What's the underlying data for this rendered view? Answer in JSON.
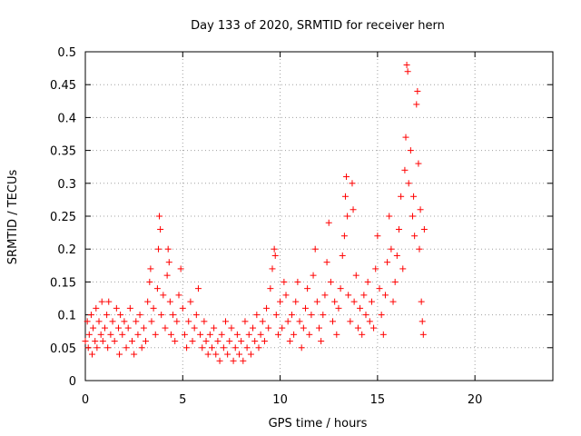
{
  "chart_data": {
    "type": "scatter",
    "title": "Day 133 of 2020, SRMTID for receiver hern",
    "xlabel": "GPS time / hours",
    "ylabel": "SRMTID / TECUs",
    "xlim": [
      0,
      24
    ],
    "ylim": [
      0,
      0.5
    ],
    "xticks": [
      0,
      5,
      10,
      15,
      20
    ],
    "yticks": [
      0,
      0.05,
      0.1,
      0.15,
      0.2,
      0.25,
      0.3,
      0.35,
      0.4,
      0.45,
      0.5
    ],
    "grid": true,
    "marker": "+",
    "color": "#ff0000",
    "series": [
      {
        "name": "SRMTID",
        "points": [
          [
            0.0,
            0.06
          ],
          [
            0.1,
            0.09
          ],
          [
            0.15,
            0.05
          ],
          [
            0.2,
            0.07
          ],
          [
            0.3,
            0.1
          ],
          [
            0.35,
            0.04
          ],
          [
            0.4,
            0.08
          ],
          [
            0.5,
            0.06
          ],
          [
            0.55,
            0.11
          ],
          [
            0.6,
            0.05
          ],
          [
            0.7,
            0.09
          ],
          [
            0.8,
            0.07
          ],
          [
            0.85,
            0.12
          ],
          [
            0.9,
            0.06
          ],
          [
            1.0,
            0.08
          ],
          [
            1.1,
            0.1
          ],
          [
            1.15,
            0.05
          ],
          [
            1.2,
            0.12
          ],
          [
            1.3,
            0.07
          ],
          [
            1.4,
            0.09
          ],
          [
            1.5,
            0.06
          ],
          [
            1.6,
            0.11
          ],
          [
            1.7,
            0.08
          ],
          [
            1.75,
            0.04
          ],
          [
            1.8,
            0.1
          ],
          [
            1.9,
            0.07
          ],
          [
            2.0,
            0.09
          ],
          [
            2.1,
            0.05
          ],
          [
            2.2,
            0.08
          ],
          [
            2.3,
            0.11
          ],
          [
            2.4,
            0.06
          ],
          [
            2.5,
            0.04
          ],
          [
            2.6,
            0.09
          ],
          [
            2.7,
            0.07
          ],
          [
            2.8,
            0.1
          ],
          [
            2.9,
            0.05
          ],
          [
            3.0,
            0.08
          ],
          [
            3.1,
            0.06
          ],
          [
            3.2,
            0.12
          ],
          [
            3.3,
            0.15
          ],
          [
            3.35,
            0.17
          ],
          [
            3.4,
            0.09
          ],
          [
            3.5,
            0.11
          ],
          [
            3.6,
            0.07
          ],
          [
            3.7,
            0.14
          ],
          [
            3.75,
            0.2
          ],
          [
            3.8,
            0.25
          ],
          [
            3.85,
            0.23
          ],
          [
            3.9,
            0.1
          ],
          [
            4.0,
            0.13
          ],
          [
            4.1,
            0.08
          ],
          [
            4.2,
            0.16
          ],
          [
            4.25,
            0.2
          ],
          [
            4.3,
            0.18
          ],
          [
            4.35,
            0.12
          ],
          [
            4.4,
            0.07
          ],
          [
            4.5,
            0.1
          ],
          [
            4.6,
            0.06
          ],
          [
            4.7,
            0.09
          ],
          [
            4.8,
            0.13
          ],
          [
            4.9,
            0.17
          ],
          [
            5.0,
            0.11
          ],
          [
            5.1,
            0.07
          ],
          [
            5.2,
            0.05
          ],
          [
            5.3,
            0.09
          ],
          [
            5.4,
            0.12
          ],
          [
            5.5,
            0.06
          ],
          [
            5.6,
            0.08
          ],
          [
            5.7,
            0.1
          ],
          [
            5.8,
            0.14
          ],
          [
            5.9,
            0.07
          ],
          [
            6.0,
            0.05
          ],
          [
            6.1,
            0.09
          ],
          [
            6.2,
            0.06
          ],
          [
            6.3,
            0.04
          ],
          [
            6.4,
            0.07
          ],
          [
            6.5,
            0.05
          ],
          [
            6.6,
            0.08
          ],
          [
            6.7,
            0.04
          ],
          [
            6.8,
            0.06
          ],
          [
            6.9,
            0.03
          ],
          [
            7.0,
            0.07
          ],
          [
            7.1,
            0.05
          ],
          [
            7.2,
            0.09
          ],
          [
            7.3,
            0.04
          ],
          [
            7.4,
            0.06
          ],
          [
            7.5,
            0.08
          ],
          [
            7.6,
            0.03
          ],
          [
            7.7,
            0.05
          ],
          [
            7.8,
            0.07
          ],
          [
            7.9,
            0.04
          ],
          [
            8.0,
            0.06
          ],
          [
            8.1,
            0.03
          ],
          [
            8.2,
            0.09
          ],
          [
            8.3,
            0.05
          ],
          [
            8.4,
            0.07
          ],
          [
            8.5,
            0.04
          ],
          [
            8.6,
            0.08
          ],
          [
            8.7,
            0.06
          ],
          [
            8.8,
            0.1
          ],
          [
            8.9,
            0.05
          ],
          [
            9.0,
            0.07
          ],
          [
            9.1,
            0.09
          ],
          [
            9.2,
            0.06
          ],
          [
            9.3,
            0.11
          ],
          [
            9.4,
            0.08
          ],
          [
            9.5,
            0.14
          ],
          [
            9.6,
            0.17
          ],
          [
            9.7,
            0.2
          ],
          [
            9.75,
            0.19
          ],
          [
            9.8,
            0.1
          ],
          [
            9.9,
            0.07
          ],
          [
            10.0,
            0.12
          ],
          [
            10.1,
            0.08
          ],
          [
            10.2,
            0.15
          ],
          [
            10.3,
            0.13
          ],
          [
            10.4,
            0.09
          ],
          [
            10.5,
            0.06
          ],
          [
            10.6,
            0.1
          ],
          [
            10.7,
            0.07
          ],
          [
            10.8,
            0.12
          ],
          [
            10.9,
            0.15
          ],
          [
            11.0,
            0.09
          ],
          [
            11.1,
            0.05
          ],
          [
            11.2,
            0.08
          ],
          [
            11.3,
            0.11
          ],
          [
            11.4,
            0.14
          ],
          [
            11.5,
            0.07
          ],
          [
            11.6,
            0.1
          ],
          [
            11.7,
            0.16
          ],
          [
            11.8,
            0.2
          ],
          [
            11.9,
            0.12
          ],
          [
            12.0,
            0.08
          ],
          [
            12.1,
            0.06
          ],
          [
            12.2,
            0.1
          ],
          [
            12.3,
            0.13
          ],
          [
            12.4,
            0.18
          ],
          [
            12.5,
            0.24
          ],
          [
            12.6,
            0.15
          ],
          [
            12.7,
            0.09
          ],
          [
            12.8,
            0.12
          ],
          [
            12.9,
            0.07
          ],
          [
            13.0,
            0.11
          ],
          [
            13.1,
            0.14
          ],
          [
            13.2,
            0.19
          ],
          [
            13.3,
            0.22
          ],
          [
            13.35,
            0.28
          ],
          [
            13.4,
            0.31
          ],
          [
            13.45,
            0.25
          ],
          [
            13.5,
            0.13
          ],
          [
            13.6,
            0.09
          ],
          [
            13.7,
            0.3
          ],
          [
            13.75,
            0.26
          ],
          [
            13.8,
            0.12
          ],
          [
            13.9,
            0.16
          ],
          [
            14.0,
            0.08
          ],
          [
            14.1,
            0.11
          ],
          [
            14.2,
            0.07
          ],
          [
            14.3,
            0.13
          ],
          [
            14.4,
            0.1
          ],
          [
            14.5,
            0.15
          ],
          [
            14.6,
            0.09
          ],
          [
            14.7,
            0.12
          ],
          [
            14.8,
            0.08
          ],
          [
            14.9,
            0.17
          ],
          [
            15.0,
            0.22
          ],
          [
            15.1,
            0.14
          ],
          [
            15.2,
            0.1
          ],
          [
            15.3,
            0.07
          ],
          [
            15.4,
            0.13
          ],
          [
            15.5,
            0.18
          ],
          [
            15.6,
            0.25
          ],
          [
            15.7,
            0.2
          ],
          [
            15.8,
            0.12
          ],
          [
            15.9,
            0.15
          ],
          [
            16.0,
            0.19
          ],
          [
            16.1,
            0.23
          ],
          [
            16.2,
            0.28
          ],
          [
            16.3,
            0.17
          ],
          [
            16.4,
            0.32
          ],
          [
            16.45,
            0.37
          ],
          [
            16.5,
            0.48
          ],
          [
            16.55,
            0.47
          ],
          [
            16.6,
            0.3
          ],
          [
            16.7,
            0.35
          ],
          [
            16.8,
            0.25
          ],
          [
            16.85,
            0.28
          ],
          [
            16.9,
            0.22
          ],
          [
            17.0,
            0.42
          ],
          [
            17.05,
            0.44
          ],
          [
            17.1,
            0.33
          ],
          [
            17.15,
            0.2
          ],
          [
            17.2,
            0.26
          ],
          [
            17.25,
            0.12
          ],
          [
            17.3,
            0.09
          ],
          [
            17.35,
            0.07
          ],
          [
            17.4,
            0.23
          ]
        ]
      }
    ]
  }
}
